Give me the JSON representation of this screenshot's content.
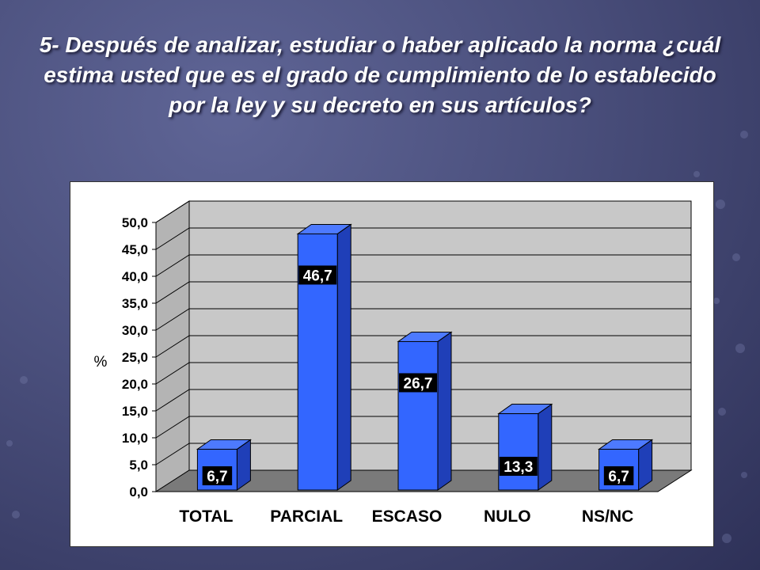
{
  "slide": {
    "title": "5- Después de analizar, estudiar o haber aplicado la norma ¿cuál estima usted que es el grado de cumplimiento de lo establecido por la ley y su decreto en sus artículos?"
  },
  "colors": {
    "background": "#4a4f7c",
    "bar_front": "#3366ff",
    "bar_side": "#1f3fb8",
    "bar_top": "#4d7aff",
    "wall": "#c8c8c8",
    "floor": "#7a7a7a",
    "label_box": "#000000"
  },
  "chart_data": {
    "type": "bar",
    "categories": [
      "TOTAL",
      "PARCIAL",
      "ESCASO",
      "NULO",
      "NS/NC"
    ],
    "values": [
      6.7,
      46.7,
      26.7,
      13.3,
      6.7
    ],
    "data_labels": [
      "6,7",
      "46,7",
      "26,7",
      "13,3",
      "6,7"
    ],
    "ylabel": "%",
    "ylim": [
      0,
      50
    ],
    "yticks": [
      "0,0",
      "5,0",
      "10,0",
      "15,0",
      "20,0",
      "25,0",
      "30,0",
      "35,0",
      "40,0",
      "45,0",
      "50,0"
    ],
    "grid": true,
    "style": "3d-column"
  }
}
